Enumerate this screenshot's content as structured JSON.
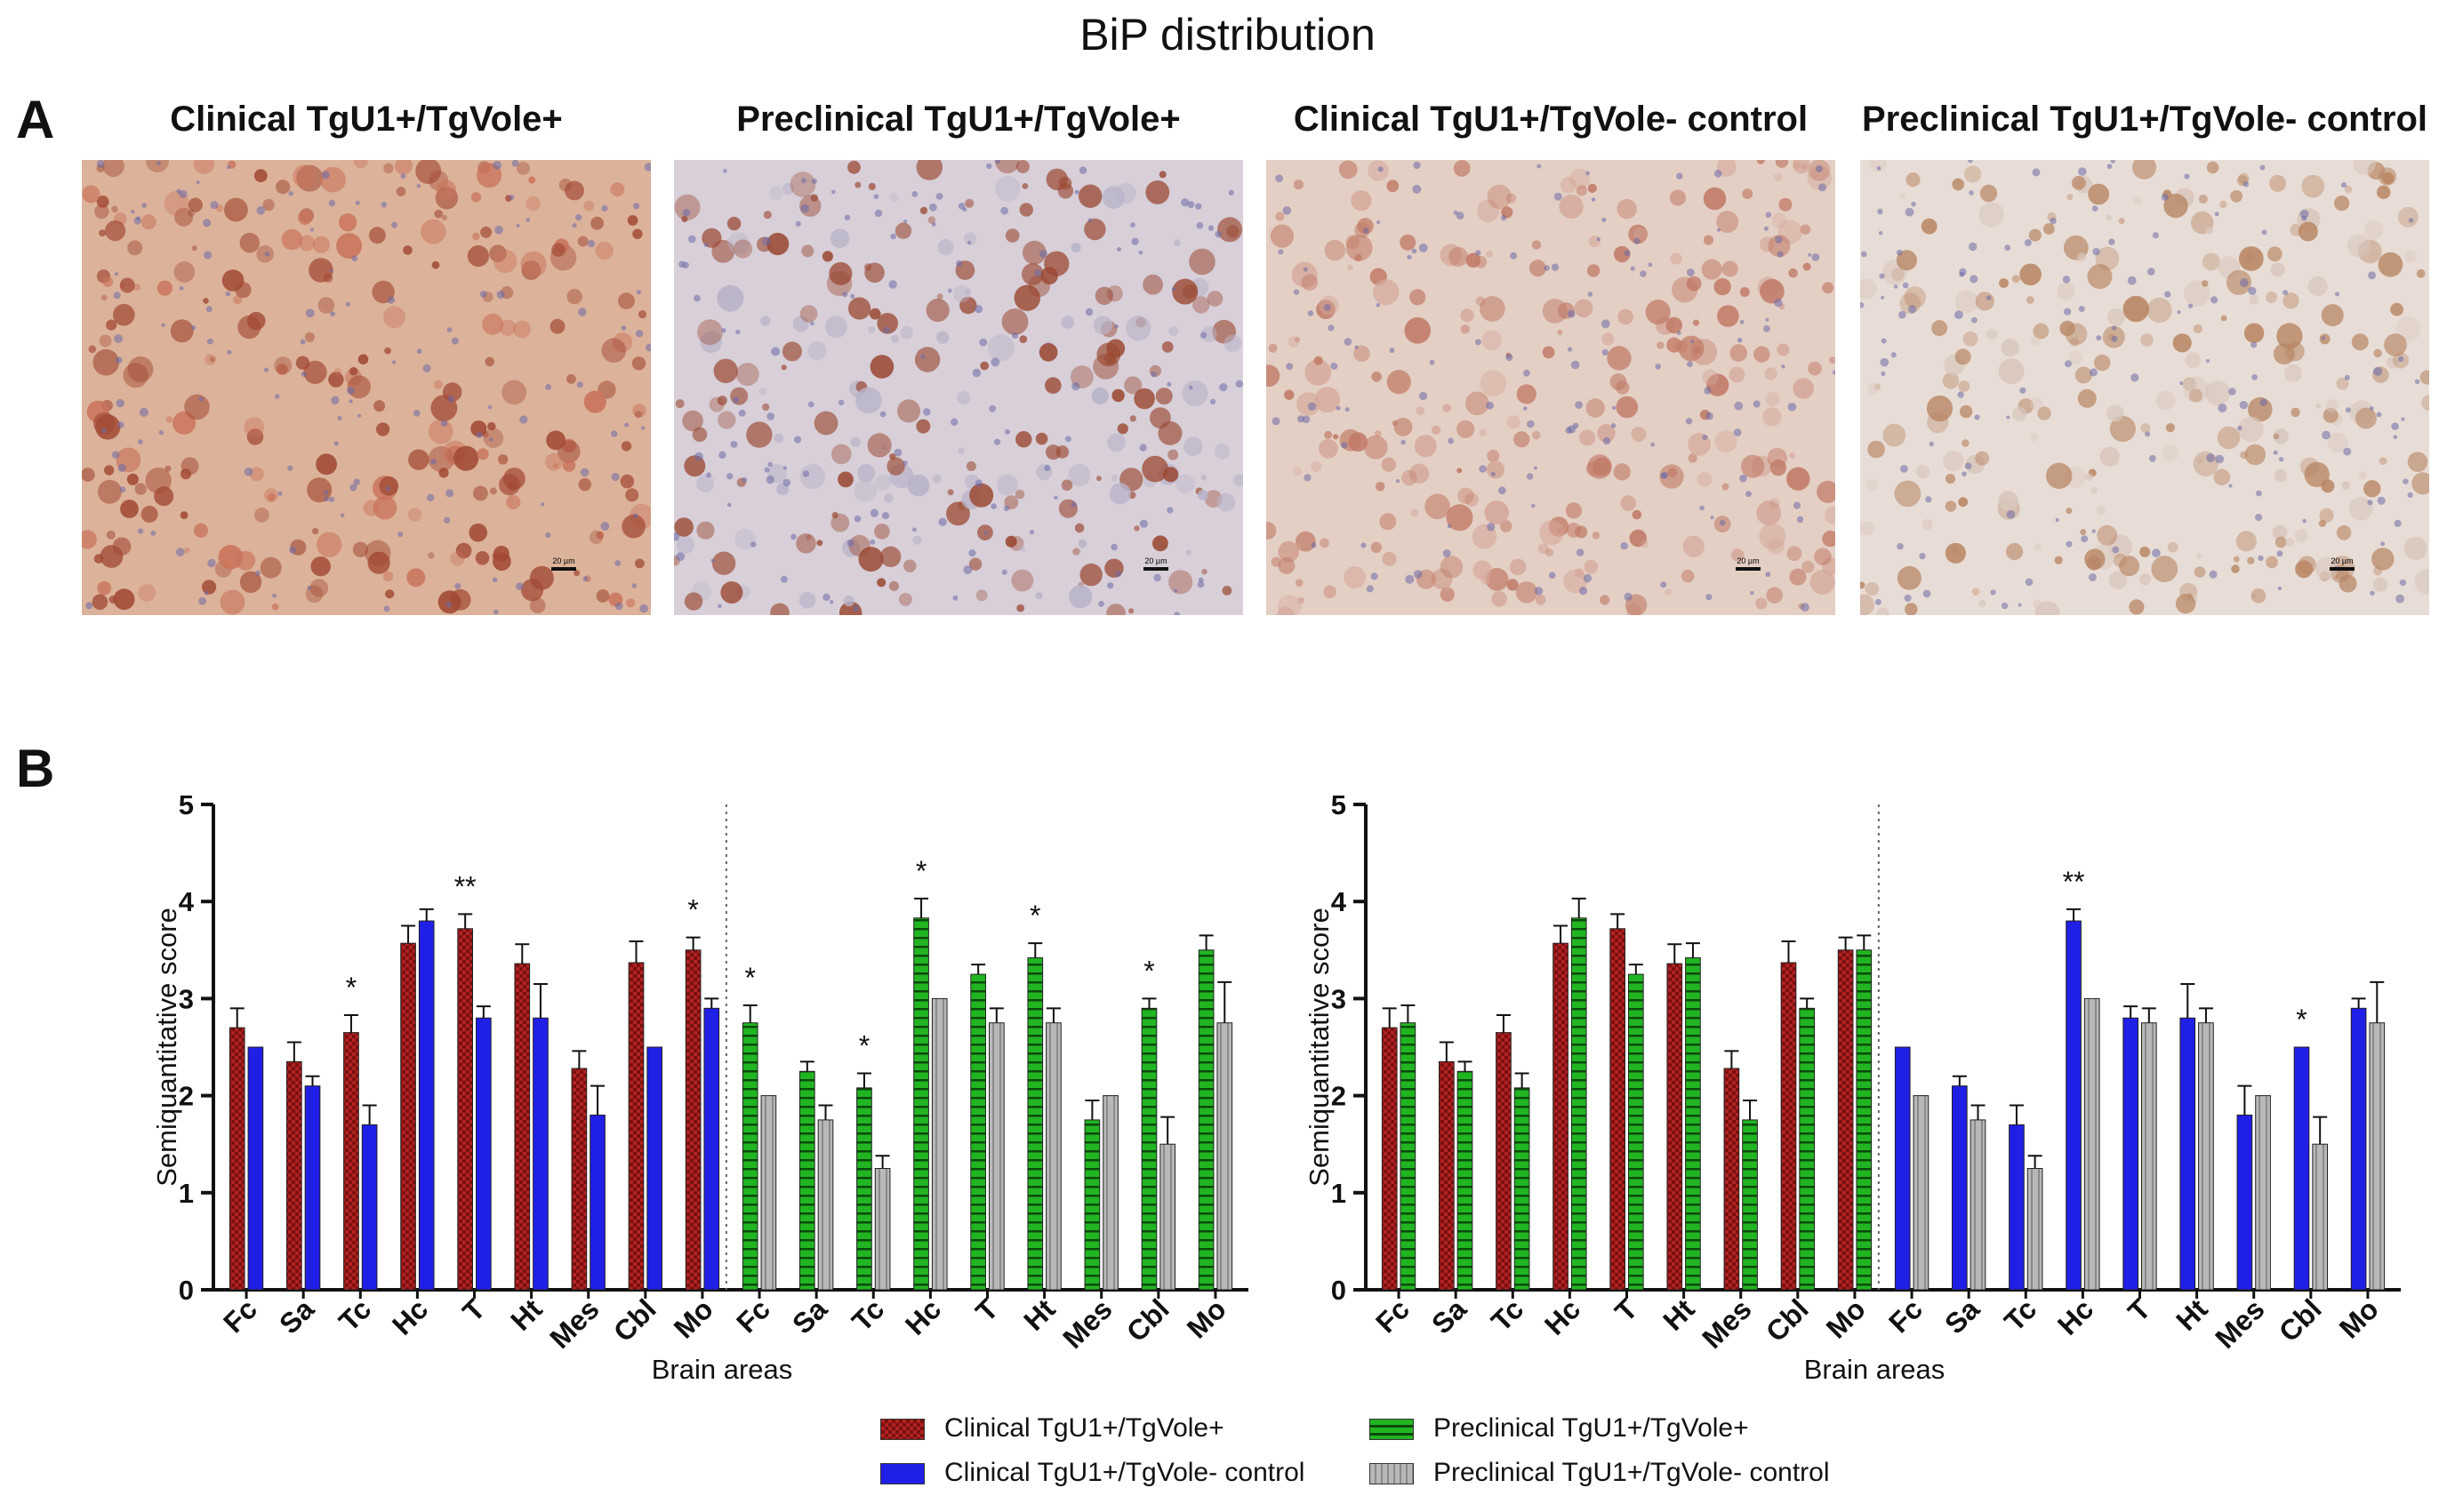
{
  "figure_title": "BiP distribution",
  "panel_a_label": "A",
  "panel_b_label": "B",
  "micrographs": [
    {
      "title": "Clinical TgU1+/TgVole+",
      "scale_bar": "20 µm",
      "tone": "#c9735a",
      "bg": "#dcb29a",
      "cell": "#a24a34"
    },
    {
      "title": "Preclinical TgU1+/TgVole+",
      "scale_bar": "20 µm",
      "tone": "#b8b3c8",
      "bg": "#d8cfd8",
      "cell": "#9b4a34"
    },
    {
      "title": "Clinical TgU1+/TgVole- control",
      "scale_bar": "20 µm",
      "tone": "#d4a79a",
      "bg": "#e4cfc4",
      "cell": "#c07a66"
    },
    {
      "title": "Preclinical TgU1+/TgVole- control",
      "scale_bar": "20 µm",
      "tone": "#d8c6bc",
      "bg": "#e8ddd6",
      "cell": "#b88664"
    }
  ],
  "colors": {
    "clinical_pos": "#b22222",
    "preclinical_pos": "#22b522",
    "clinical_ctrl": "#1f1fe6",
    "preclinical_ctrl": "#a8a8a8"
  },
  "legend": [
    {
      "key": "clinical_pos",
      "label": "Clinical TgU1+/TgVole+"
    },
    {
      "key": "preclinical_pos",
      "label": "Preclinical TgU1+/TgVole+"
    },
    {
      "key": "clinical_ctrl",
      "label": "Clinical TgU1+/TgVole- control"
    },
    {
      "key": "preclinical_ctrl",
      "label": "Preclinical TgU1+/TgVole- control"
    }
  ],
  "chart_data": [
    {
      "type": "bar",
      "ylabel": "Semiquantitative score",
      "xlabel": "Brain areas",
      "ylim": [
        0,
        5
      ],
      "yticks": [
        0,
        1,
        2,
        3,
        4,
        5
      ],
      "groups": [
        {
          "categories": [
            "Fc",
            "Sa",
            "Tc",
            "Hc",
            "T",
            "Ht",
            "Mes",
            "Cbl",
            "Mo"
          ],
          "series": [
            {
              "key": "clinical_pos",
              "values": [
                2.7,
                2.35,
                2.65,
                3.57,
                3.72,
                3.36,
                2.28,
                3.37,
                3.5
              ],
              "errors": [
                0.2,
                0.2,
                0.18,
                0.18,
                0.15,
                0.2,
                0.18,
                0.22,
                0.13
              ]
            },
            {
              "key": "clinical_ctrl",
              "values": [
                2.5,
                2.1,
                1.7,
                3.8,
                2.8,
                2.8,
                1.8,
                2.5,
                2.9
              ],
              "errors": [
                0,
                0.1,
                0.2,
                0.12,
                0.12,
                0.35,
                0.3,
                0,
                0.1
              ]
            }
          ],
          "significance": [
            "",
            "",
            "*",
            "",
            "**",
            "",
            "",
            "",
            "*"
          ]
        },
        {
          "categories": [
            "Fc",
            "Sa",
            "Tc",
            "Hc",
            "T",
            "Ht",
            "Mes",
            "Cbl",
            "Mo"
          ],
          "series": [
            {
              "key": "preclinical_pos",
              "values": [
                2.75,
                2.25,
                2.08,
                3.83,
                3.25,
                3.42,
                1.75,
                2.9,
                3.5
              ],
              "errors": [
                0.18,
                0.1,
                0.15,
                0.2,
                0.1,
                0.15,
                0.2,
                0.1,
                0.15
              ]
            },
            {
              "key": "preclinical_ctrl",
              "values": [
                2.0,
                1.75,
                1.25,
                3.0,
                2.75,
                2.75,
                2.0,
                1.5,
                2.75
              ],
              "errors": [
                0,
                0.15,
                0.13,
                0,
                0.15,
                0.15,
                0,
                0.28,
                0.42
              ]
            }
          ],
          "significance": [
            "*",
            "",
            "*",
            "*",
            "",
            "*",
            "",
            "*",
            ""
          ]
        }
      ]
    },
    {
      "type": "bar",
      "ylabel": "Semiquantitative score",
      "xlabel": "Brain areas",
      "ylim": [
        0,
        5
      ],
      "yticks": [
        0,
        1,
        2,
        3,
        4,
        5
      ],
      "groups": [
        {
          "categories": [
            "Fc",
            "Sa",
            "Tc",
            "Hc",
            "T",
            "Ht",
            "Mes",
            "Cbl",
            "Mo"
          ],
          "series": [
            {
              "key": "clinical_pos",
              "values": [
                2.7,
                2.35,
                2.65,
                3.57,
                3.72,
                3.36,
                2.28,
                3.37,
                3.5
              ],
              "errors": [
                0.2,
                0.2,
                0.18,
                0.18,
                0.15,
                0.2,
                0.18,
                0.22,
                0.13
              ]
            },
            {
              "key": "preclinical_pos",
              "values": [
                2.75,
                2.25,
                2.08,
                3.83,
                3.25,
                3.42,
                1.75,
                2.9,
                3.5
              ],
              "errors": [
                0.18,
                0.1,
                0.15,
                0.2,
                0.1,
                0.15,
                0.2,
                0.1,
                0.15
              ]
            }
          ],
          "significance": [
            "",
            "",
            "",
            "",
            "",
            "",
            "",
            "",
            ""
          ]
        },
        {
          "categories": [
            "Fc",
            "Sa",
            "Tc",
            "Hc",
            "T",
            "Ht",
            "Mes",
            "Cbl",
            "Mo"
          ],
          "series": [
            {
              "key": "clinical_ctrl",
              "values": [
                2.5,
                2.1,
                1.7,
                3.8,
                2.8,
                2.8,
                1.8,
                2.5,
                2.9
              ],
              "errors": [
                0,
                0.1,
                0.2,
                0.12,
                0.12,
                0.35,
                0.3,
                0,
                0.1
              ]
            },
            {
              "key": "preclinical_ctrl",
              "values": [
                2.0,
                1.75,
                1.25,
                3.0,
                2.75,
                2.75,
                2.0,
                1.5,
                2.75
              ],
              "errors": [
                0,
                0.15,
                0.13,
                0,
                0.15,
                0.15,
                0,
                0.28,
                0.42
              ]
            }
          ],
          "significance": [
            "",
            "",
            "",
            "**",
            "",
            "",
            "",
            "*",
            ""
          ]
        }
      ]
    }
  ]
}
